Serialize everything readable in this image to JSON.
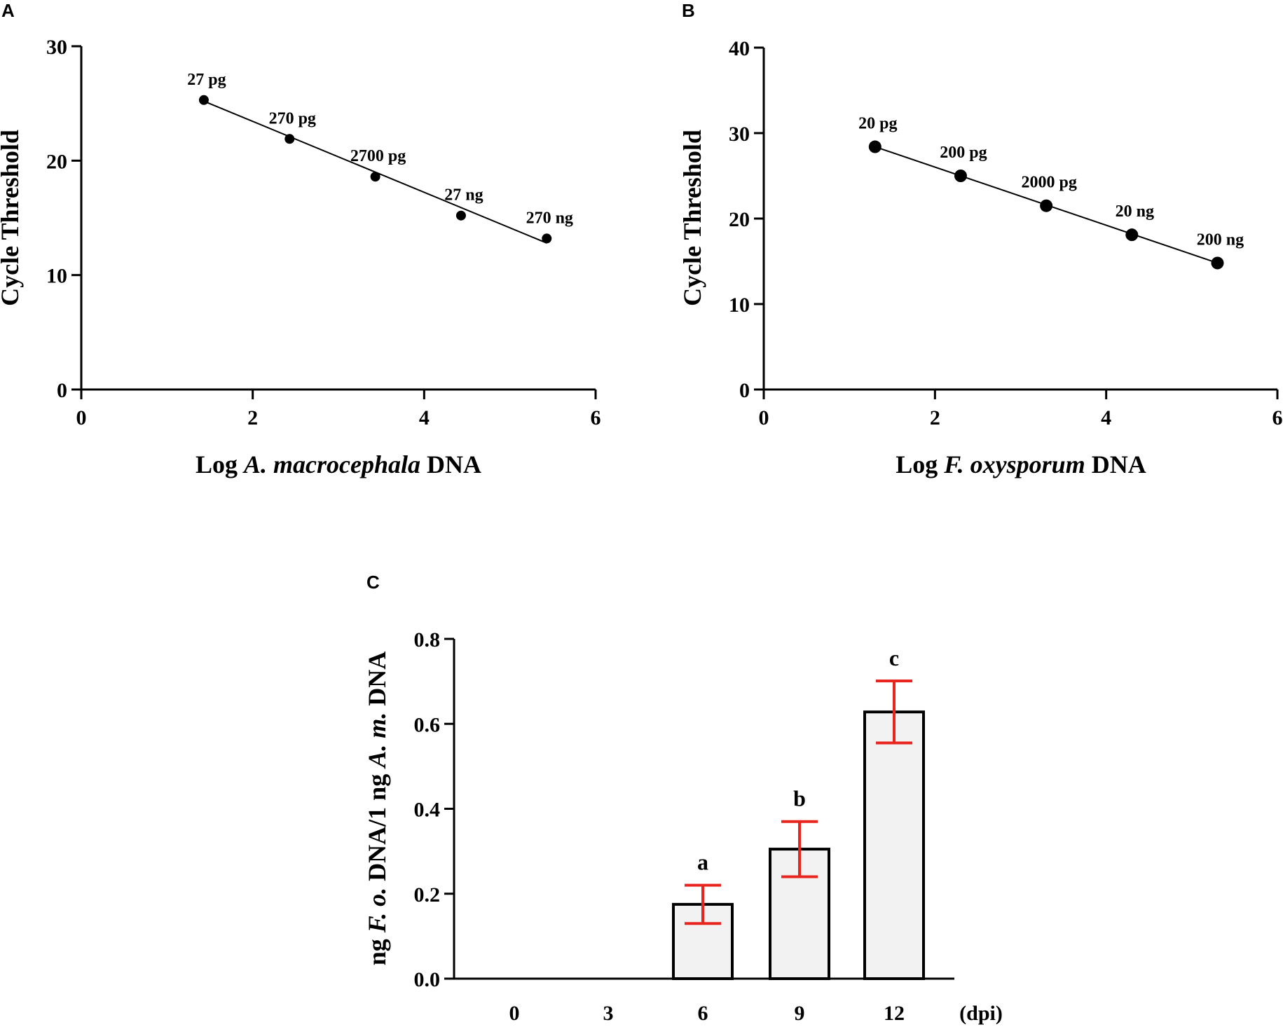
{
  "chart_data": [
    {
      "panel": "A",
      "type": "scatter",
      "xlabel": {
        "prefix": "Log ",
        "italic": "A. macrocephala",
        "suffix": " DNA"
      },
      "ylabel": "Cycle Threshold",
      "xlim": [
        0,
        6
      ],
      "ylim": [
        0,
        30
      ],
      "xticks": [
        0,
        2,
        4,
        6
      ],
      "yticks": [
        0,
        10,
        20,
        30
      ],
      "points": [
        {
          "x": 1.43,
          "y": 25.3,
          "label": "27 pg"
        },
        {
          "x": 2.43,
          "y": 21.9,
          "label": "270 pg"
        },
        {
          "x": 3.43,
          "y": 18.6,
          "label": "2700 pg"
        },
        {
          "x": 4.43,
          "y": 15.2,
          "label": "27 ng"
        },
        {
          "x": 5.43,
          "y": 13.2,
          "label": "270 ng"
        }
      ],
      "fit_line": {
        "x": [
          1.43,
          5.43
        ],
        "y": [
          25.2,
          12.8
        ]
      }
    },
    {
      "panel": "B",
      "type": "scatter",
      "xlabel": {
        "prefix": "Log ",
        "italic": "F. oxysporum",
        "suffix": " DNA"
      },
      "ylabel": "Cycle Threshold",
      "xlim": [
        0,
        6
      ],
      "ylim": [
        0,
        40
      ],
      "xticks": [
        0,
        2,
        4,
        6
      ],
      "yticks": [
        0,
        10,
        20,
        30,
        40
      ],
      "points": [
        {
          "x": 1.3,
          "y": 28.4,
          "label": "20 pg"
        },
        {
          "x": 2.3,
          "y": 25.0,
          "label": "200 pg"
        },
        {
          "x": 3.3,
          "y": 21.5,
          "label": "2000 pg"
        },
        {
          "x": 4.3,
          "y": 18.1,
          "label": "20 ng"
        },
        {
          "x": 5.3,
          "y": 14.8,
          "label": "200 ng"
        }
      ],
      "fit_line": {
        "x": [
          1.3,
          5.3
        ],
        "y": [
          28.4,
          14.8
        ]
      }
    },
    {
      "panel": "C",
      "type": "bar",
      "categories": [
        "0",
        "3",
        "6",
        "9",
        "12"
      ],
      "x_unit": "(dpi)",
      "values": [
        0,
        0,
        0.175,
        0.305,
        0.628
      ],
      "errors": [
        0,
        0,
        0.045,
        0.065,
        0.073
      ],
      "significance": [
        "",
        "",
        "a",
        "b",
        "c"
      ],
      "ylabel": {
        "prefix": "ng ",
        "italic1": "F. o.",
        "middle": " DNA/1 ng ",
        "italic2": "A. m.",
        "suffix": " DNA"
      },
      "ylim": [
        0,
        0.8
      ],
      "yticks": [
        "0.0",
        "0.2",
        "0.4",
        "0.6",
        "0.8"
      ],
      "bar_fill": "#f2f2f2",
      "error_color": "#e8251f"
    }
  ]
}
